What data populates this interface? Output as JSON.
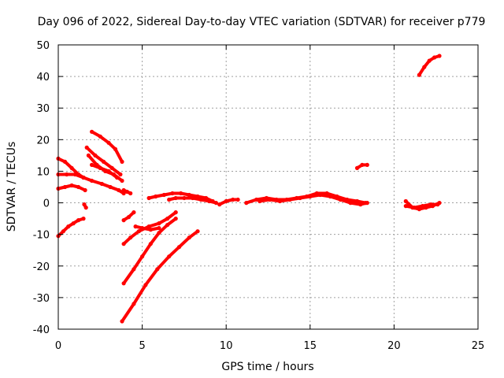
{
  "chart_data": {
    "type": "scatter",
    "title": "Day 096 of 2022, Sidereal Day-to-day VTEC variation (SDTVAR) for receiver p779",
    "xlabel": "GPS time / hours",
    "ylabel": "SDTVAR / TECUs",
    "xlim": [
      0,
      25
    ],
    "ylim": [
      -40,
      50
    ],
    "xticks": [
      0,
      5,
      10,
      15,
      20,
      25
    ],
    "yticks": [
      -40,
      -30,
      -20,
      -10,
      0,
      10,
      20,
      30,
      40,
      50
    ],
    "grid": true,
    "color": "#ff0000",
    "series": [
      {
        "x": [
          0.0,
          0.4,
          0.8,
          1.2,
          1.5
        ],
        "y": [
          14,
          13,
          11,
          9,
          8
        ]
      },
      {
        "x": [
          0.0,
          0.5,
          1.0,
          1.5,
          2.0,
          2.6,
          3.1,
          3.6,
          3.9
        ],
        "y": [
          9,
          9,
          9,
          8,
          7,
          6,
          5,
          4,
          3
        ]
      },
      {
        "x": [
          0.0,
          0.4,
          0.8,
          1.2,
          1.6
        ],
        "y": [
          4.5,
          5,
          5.5,
          5,
          4
        ]
      },
      {
        "x": [
          0.0,
          0.3,
          0.6,
          0.9,
          1.2,
          1.5
        ],
        "y": [
          -10.5,
          -9,
          -7.5,
          -6.5,
          -5.5,
          -5
        ]
      },
      {
        "x": [
          1.55,
          1.65
        ],
        "y": [
          -0.5,
          -1.5
        ]
      },
      {
        "x": [
          2.0,
          2.5,
          3.0,
          3.4,
          3.8
        ],
        "y": [
          22.5,
          21,
          19,
          17,
          13
        ]
      },
      {
        "x": [
          1.7,
          2.2,
          2.7,
          3.2,
          3.7
        ],
        "y": [
          17.5,
          15,
          13,
          11,
          9
        ]
      },
      {
        "x": [
          1.8,
          2.3,
          2.8,
          3.3,
          3.8
        ],
        "y": [
          15,
          12,
          10,
          9,
          7
        ]
      },
      {
        "x": [
          2.0,
          2.5,
          3.0,
          3.5
        ],
        "y": [
          12,
          11,
          10,
          8
        ]
      },
      {
        "x": [
          3.9,
          4.1,
          4.3
        ],
        "y": [
          4,
          3.5,
          3
        ]
      },
      {
        "x": [
          3.9,
          4.2,
          4.5
        ],
        "y": [
          -5.5,
          -4.5,
          -3
        ]
      },
      {
        "x": [
          3.9,
          4.3,
          4.8,
          5.4,
          6.0,
          6.5,
          7.0
        ],
        "y": [
          -13,
          -11,
          -9,
          -7.5,
          -6.5,
          -5,
          -3
        ]
      },
      {
        "x": [
          4.6,
          5.0,
          5.5,
          6.0
        ],
        "y": [
          -7.5,
          -8,
          -8.5,
          -8
        ]
      },
      {
        "x": [
          3.9,
          4.5,
          5.0,
          5.5,
          6.0,
          6.5,
          7.0
        ],
        "y": [
          -25.5,
          -21,
          -17,
          -13,
          -9.5,
          -7,
          -5
        ]
      },
      {
        "x": [
          3.8,
          4.5,
          5.2,
          5.9,
          6.6,
          7.2,
          7.8,
          8.3
        ],
        "y": [
          -37.5,
          -32,
          -26,
          -21,
          -17,
          -14,
          -11,
          -9
        ]
      },
      {
        "x": [
          5.4,
          5.8,
          6.3,
          6.8,
          7.3,
          7.8,
          8.3,
          8.8,
          9.2
        ],
        "y": [
          1.5,
          2,
          2.5,
          3,
          3,
          2.5,
          2,
          1.5,
          0.5
        ]
      },
      {
        "x": [
          6.6,
          7.0,
          7.5,
          8.0,
          8.5,
          9.0,
          9.4
        ],
        "y": [
          1,
          1.5,
          1.5,
          1.5,
          1,
          0.5,
          0
        ]
      },
      {
        "x": [
          9.6,
          10.0,
          10.4,
          10.7
        ],
        "y": [
          -0.5,
          0.5,
          1,
          1
        ]
      },
      {
        "x": [
          11.2,
          11.8,
          12.4,
          13.0,
          13.6,
          14.2,
          14.8,
          15.4,
          16.0,
          16.6,
          17.2,
          17.8,
          18.3
        ],
        "y": [
          0,
          1,
          1.5,
          1,
          1,
          1.5,
          2,
          3,
          3,
          2,
          1,
          0.5,
          0
        ]
      },
      {
        "x": [
          12.0,
          12.6,
          13.2,
          13.8,
          14.4,
          15.0,
          15.6,
          16.2,
          16.8,
          17.4,
          18.0,
          18.4
        ],
        "y": [
          0.5,
          1,
          0.5,
          1,
          1.5,
          2,
          2.5,
          2,
          1,
          0,
          -0.5,
          0
        ]
      },
      {
        "x": [
          17.8,
          18.1,
          18.4
        ],
        "y": [
          11,
          12,
          12
        ]
      },
      {
        "x": [
          20.7,
          21.1,
          21.5,
          21.9,
          22.3,
          22.7
        ],
        "y": [
          0.5,
          -1.5,
          -2,
          -1.5,
          -1,
          0
        ]
      },
      {
        "x": [
          20.7,
          21.2,
          21.7,
          22.2,
          22.6
        ],
        "y": [
          -1,
          -1.5,
          -1,
          -0.5,
          -0.5
        ]
      },
      {
        "x": [
          21.5,
          21.8,
          22.1,
          22.4,
          22.7
        ],
        "y": [
          40.5,
          43,
          45,
          46,
          46.5
        ]
      }
    ]
  }
}
